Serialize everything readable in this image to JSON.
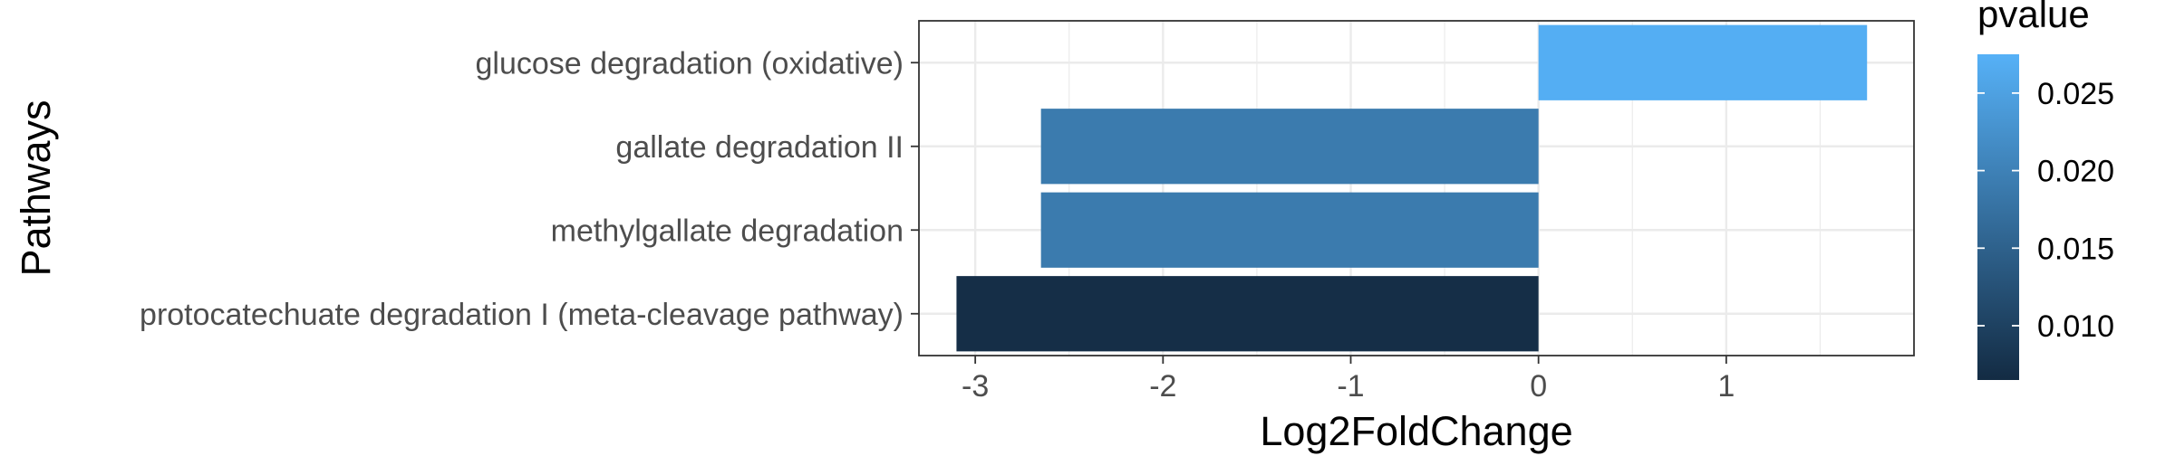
{
  "chart_data": {
    "type": "bar",
    "orientation": "horizontal",
    "xlabel": "Log2FoldChange",
    "ylabel": "Pathways",
    "xlim": [
      -3.3,
      2.0
    ],
    "xticks": [
      -3,
      -2,
      -1,
      0,
      1
    ],
    "grid": true,
    "categories": [
      "glucose degradation (oxidative)",
      "gallate degradation II",
      "methylgallate degradation",
      "protocatechuate degradation I (meta-cleavage pathway)"
    ],
    "values": [
      1.75,
      -2.65,
      -2.65,
      -3.1
    ],
    "pvalues": [
      0.027,
      0.019,
      0.019,
      0.007
    ],
    "legend": {
      "title": "pvalue",
      "position": "right",
      "ticks": [
        0.025,
        0.02,
        0.015,
        0.01
      ],
      "range": [
        0.0065,
        0.0275
      ],
      "color_low": "#132b43",
      "color_high": "#56b1f7"
    }
  }
}
